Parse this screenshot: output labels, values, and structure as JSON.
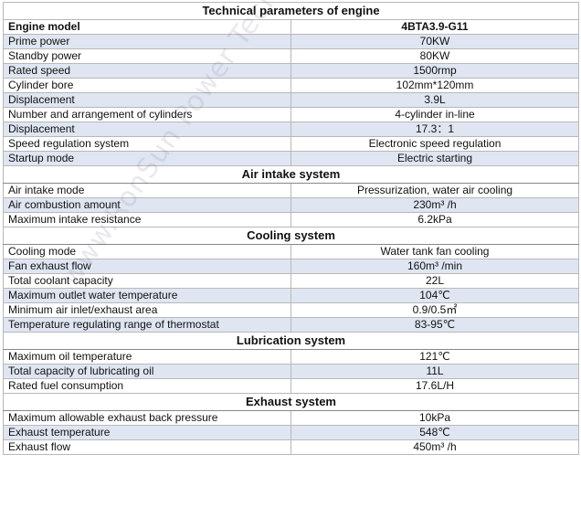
{
  "title": "Technical parameters of engine",
  "watermark": "www.RonSun Power Technology Co.,",
  "header": {
    "label": "Engine model",
    "value": "4BTA3.9-G11"
  },
  "general": [
    {
      "label": "Prime power",
      "value": "70KW"
    },
    {
      "label": "Standby power",
      "value": "80KW"
    },
    {
      "label": "Rated speed",
      "value": "1500rmp"
    },
    {
      "label": "Cylinder bore",
      "value": "102mm*120mm"
    },
    {
      "label": "Displacement",
      "value": "3.9L"
    },
    {
      "label": "Number and arrangement of cylinders",
      "value": "4-cylinder in-line"
    },
    {
      "label": "Displacement",
      "value": "17.3：1"
    },
    {
      "label": "Speed regulation system",
      "value": "Electronic speed regulation"
    },
    {
      "label": "Startup mode",
      "value": "Electric starting"
    }
  ],
  "air_intake": {
    "title": "Air intake system",
    "rows": [
      {
        "label": "Air intake mode",
        "value": "Pressurization, water air cooling"
      },
      {
        "label": "Air combustion amount",
        "value": "230m³ /h"
      },
      {
        "label": "Maximum intake resistance",
        "value": "6.2kPa"
      }
    ]
  },
  "cooling": {
    "title": "Cooling system",
    "rows": [
      {
        "label": "Cooling mode",
        "value": "Water tank fan cooling"
      },
      {
        "label": "Fan exhaust flow",
        "value": "160m³  /min"
      },
      {
        "label": "Total coolant capacity",
        "value": "22L"
      },
      {
        "label": "Maximum outlet water temperature",
        "value": "104℃"
      },
      {
        "label": "Minimum air inlet/exhaust area",
        "value": "0.9/0.5㎡"
      },
      {
        "label": "Temperature regulating range of thermostat",
        "value": "83-95℃"
      }
    ]
  },
  "lubrication": {
    "title": "Lubrication system",
    "rows": [
      {
        "label": "Maximum oil temperature",
        "value": "121℃"
      },
      {
        "label": "Total capacity of lubricating oil",
        "value": "11L"
      },
      {
        "label": "Rated fuel consumption",
        "value": "17.6L/H"
      }
    ]
  },
  "exhaust": {
    "title": "Exhaust system",
    "rows": [
      {
        "label": "Maximum allowable exhaust back pressure",
        "value": "10kPa"
      },
      {
        "label": "Exhaust temperature",
        "value": "548℃"
      },
      {
        "label": "Exhaust flow",
        "value": "450m³ /h"
      }
    ]
  },
  "colors": {
    "alt_row": "#dfe6f2",
    "border": "#b8b8b8",
    "text": "#111111"
  }
}
